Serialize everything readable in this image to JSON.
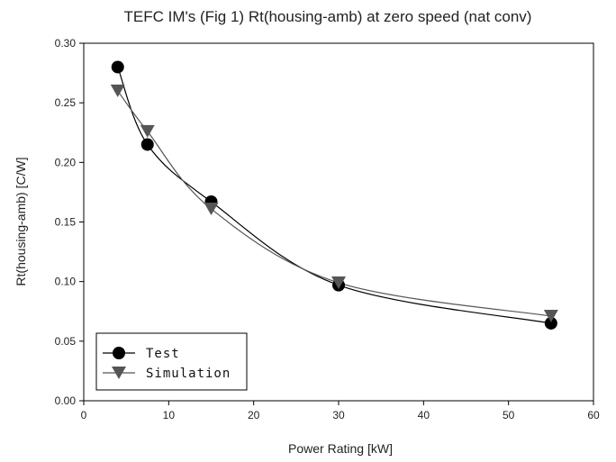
{
  "chart_data": {
    "type": "line",
    "title": "TEFC IM's (Fig 1) Rt(housing-amb) at zero speed (nat conv)",
    "xlabel": "Power Rating [kW]",
    "ylabel": "Rt(housing-amb) [C/W]",
    "xlim": [
      0,
      60
    ],
    "ylim": [
      0,
      0.3
    ],
    "xticks": [
      0,
      10,
      20,
      30,
      40,
      50,
      60
    ],
    "yticks": [
      0.0,
      0.05,
      0.1,
      0.15,
      0.2,
      0.25,
      0.3
    ],
    "xtick_labels": [
      "0",
      "10",
      "20",
      "30",
      "40",
      "50",
      "60"
    ],
    "ytick_labels": [
      "0.00",
      "0.05",
      "0.10",
      "0.15",
      "0.20",
      "0.25",
      "0.30"
    ],
    "grid": false,
    "legend_position": "bottom-left",
    "series": [
      {
        "name": "Test",
        "marker": "circle",
        "color": "#000000",
        "x": [
          4,
          7.5,
          15,
          30,
          55
        ],
        "y": [
          0.28,
          0.215,
          0.167,
          0.097,
          0.065
        ]
      },
      {
        "name": "Simulation",
        "marker": "triangle-down",
        "color": "#555555",
        "x": [
          4,
          7.5,
          15,
          30,
          55
        ],
        "y": [
          0.26,
          0.226,
          0.161,
          0.099,
          0.071
        ]
      }
    ]
  }
}
